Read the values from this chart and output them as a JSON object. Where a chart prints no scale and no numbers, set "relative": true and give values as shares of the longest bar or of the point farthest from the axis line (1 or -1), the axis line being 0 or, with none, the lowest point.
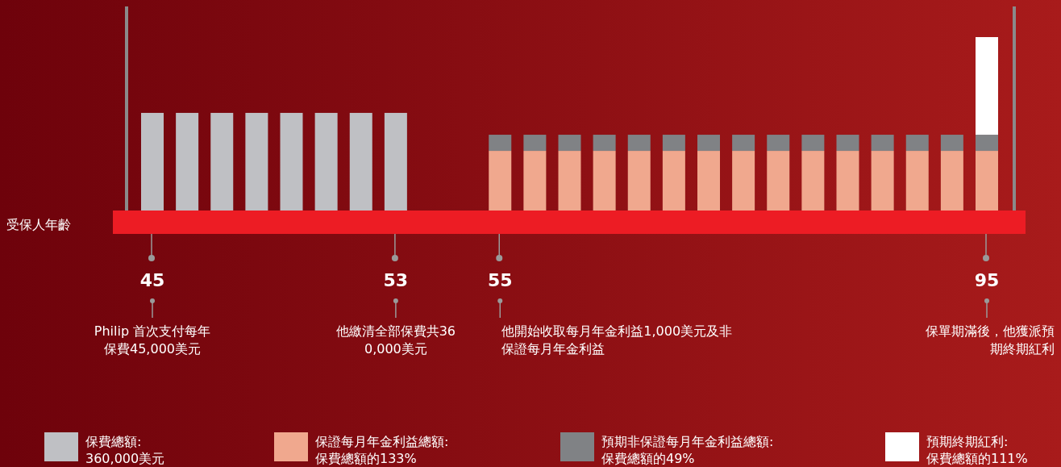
{
  "chart_data": {
    "type": "bar",
    "stacked": true,
    "relative": true,
    "xlabel": "受保人年齡",
    "categories": [
      "45",
      null,
      null,
      null,
      null,
      null,
      null,
      "53",
      null,
      null,
      "55",
      null,
      null,
      null,
      null,
      null,
      null,
      null,
      null,
      null,
      null,
      null,
      null,
      null,
      "95"
    ],
    "series": [
      {
        "name": "保費總額:\n360,000美元",
        "color": "#bfc0c4",
        "values": [
          0.563,
          0.563,
          0.563,
          0.563,
          0.563,
          0.563,
          0.563,
          0.563,
          null,
          null,
          null,
          null,
          null,
          null,
          null,
          null,
          null,
          null,
          null,
          null,
          null,
          null,
          null,
          null,
          null
        ]
      },
      {
        "name": "保證每月年金利益總額:\n保費總額的133%",
        "color": "#f0a88e",
        "values": [
          null,
          null,
          null,
          null,
          null,
          null,
          null,
          null,
          null,
          null,
          0.344,
          0.344,
          0.344,
          0.344,
          0.344,
          0.344,
          0.344,
          0.344,
          0.344,
          0.344,
          0.344,
          0.344,
          0.344,
          0.344,
          0.344
        ]
      },
      {
        "name": "預期非保證每月年金利益總額:\n保費總額的49%",
        "color": "#808285",
        "values": [
          null,
          null,
          null,
          null,
          null,
          null,
          null,
          null,
          null,
          null,
          0.093,
          0.093,
          0.093,
          0.093,
          0.093,
          0.093,
          0.093,
          0.093,
          0.093,
          0.093,
          0.093,
          0.093,
          0.093,
          0.093,
          0.093
        ]
      },
      {
        "name": "預期終期紅利:\n保費總額的111%",
        "color": "#ffffff",
        "values": [
          null,
          null,
          null,
          null,
          null,
          null,
          null,
          null,
          null,
          null,
          null,
          null,
          null,
          null,
          null,
          null,
          null,
          null,
          null,
          null,
          null,
          null,
          null,
          null,
          0.563
        ]
      }
    ],
    "annotations": [
      "Philip 首次支付每年保費45,000美元",
      "他繳清全部保費共360,000美元",
      "他開始收取每月年金利益1,000美元及非保證每月年金利益",
      "保單期滿後，他獲派預期終期紅利"
    ],
    "legend": "bottom"
  }
}
